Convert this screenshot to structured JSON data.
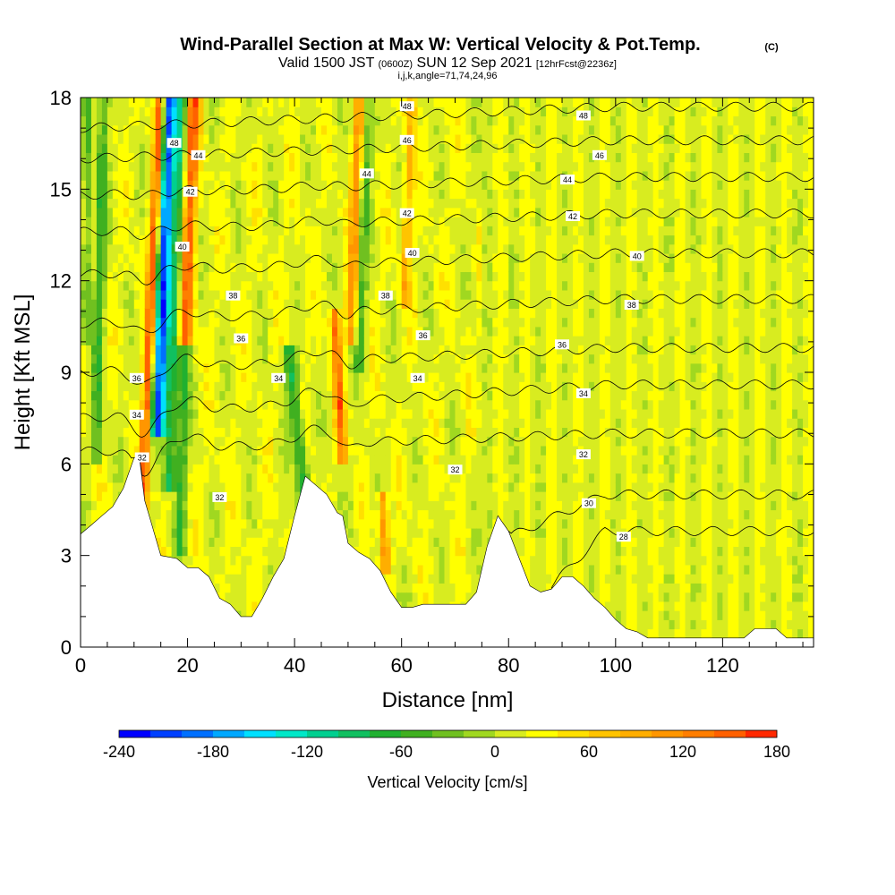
{
  "chart_data": {
    "type": "heatmap",
    "title": "Wind-Parallel Section at Max W: Vertical Velocity & Pot.Temp.",
    "title_mark": "(C)",
    "subtitle_main": "Valid 1500 JST",
    "subtitle_z": "(0600Z)",
    "subtitle_date": "SUN 12 Sep 2021",
    "subtitle_fcst": "[12hrFcst@2236z]",
    "subtitle_indices": "i,j,k,angle=71,74,24,96",
    "xlabel": "Distance [nm]",
    "ylabel": "Height [Kft MSL]",
    "xlim": [
      0,
      137
    ],
    "ylim": [
      0,
      18
    ],
    "x_ticks": [
      "0",
      "20",
      "40",
      "60",
      "80",
      "100",
      "120"
    ],
    "y_ticks": [
      "0",
      "3",
      "6",
      "9",
      "12",
      "15",
      "18"
    ],
    "colorbar": {
      "label": "Vertical Velocity [cm/s]",
      "min": -240,
      "max": 180,
      "step": 20,
      "tick_labels": [
        "-240",
        "-180",
        "-120",
        "-60",
        "0",
        "60",
        "120",
        "180"
      ],
      "colors": [
        "#0000ff",
        "#0040ff",
        "#0070ff",
        "#00a8ff",
        "#00e0ff",
        "#00e8c8",
        "#00d090",
        "#10c060",
        "#20b030",
        "#40b020",
        "#70c020",
        "#a0d820",
        "#d8ec20",
        "#ffff00",
        "#ffe000",
        "#ffc400",
        "#ffae00",
        "#ff9600",
        "#ff7e00",
        "#ff6000",
        "#ff2800",
        "#e80000",
        "#c00030",
        "#a00060",
        "#800080"
      ]
    },
    "terrain_kft": [
      [
        0,
        3.7
      ],
      [
        2,
        4.0
      ],
      [
        4,
        4.3
      ],
      [
        6,
        4.6
      ],
      [
        8,
        5.2
      ],
      [
        10,
        6.2
      ],
      [
        11,
        6.2
      ],
      [
        12,
        4.8
      ],
      [
        13,
        4.2
      ],
      [
        15,
        3.0
      ],
      [
        18,
        2.9
      ],
      [
        20,
        2.6
      ],
      [
        22,
        2.6
      ],
      [
        24,
        2.3
      ],
      [
        26,
        1.6
      ],
      [
        28,
        1.4
      ],
      [
        30,
        1.0
      ],
      [
        32,
        1.0
      ],
      [
        34,
        1.6
      ],
      [
        36,
        2.3
      ],
      [
        38,
        2.9
      ],
      [
        40,
        4.3
      ],
      [
        42,
        5.6
      ],
      [
        44,
        5.3
      ],
      [
        46,
        5.0
      ],
      [
        48,
        4.4
      ],
      [
        49,
        4.3
      ],
      [
        50,
        3.4
      ],
      [
        52,
        3.1
      ],
      [
        54,
        2.9
      ],
      [
        56,
        2.5
      ],
      [
        58,
        1.8
      ],
      [
        60,
        1.3
      ],
      [
        62,
        1.3
      ],
      [
        64,
        1.4
      ],
      [
        66,
        1.4
      ],
      [
        68,
        1.4
      ],
      [
        70,
        1.4
      ],
      [
        72,
        1.4
      ],
      [
        74,
        1.8
      ],
      [
        76,
        3.3
      ],
      [
        78,
        4.3
      ],
      [
        80,
        3.8
      ],
      [
        82,
        2.9
      ],
      [
        84,
        2.0
      ],
      [
        86,
        1.8
      ],
      [
        88,
        1.9
      ],
      [
        90,
        2.3
      ],
      [
        92,
        2.3
      ],
      [
        94,
        2.0
      ],
      [
        96,
        1.6
      ],
      [
        98,
        1.3
      ],
      [
        100,
        0.9
      ],
      [
        102,
        0.6
      ],
      [
        104,
        0.5
      ],
      [
        106,
        0.3
      ],
      [
        108,
        0.3
      ],
      [
        112,
        0.3
      ],
      [
        116,
        0.3
      ],
      [
        120,
        0.3
      ],
      [
        124,
        0.3
      ],
      [
        126,
        0.6
      ],
      [
        128,
        0.6
      ],
      [
        130,
        0.6
      ],
      [
        132,
        0.3
      ],
      [
        134,
        0.3
      ],
      [
        137,
        0.3
      ]
    ],
    "w_features": [
      {
        "x": 11.5,
        "z0": 4.5,
        "z1": 18,
        "lean": 0.25,
        "width": 0.9,
        "w": 140
      },
      {
        "x": 14.5,
        "z0": 7,
        "z1": 18,
        "lean": 0.2,
        "width": 1.3,
        "w": -220
      },
      {
        "x": 16.5,
        "z0": 5,
        "z1": 18,
        "lean": 0.2,
        "width": 1.2,
        "w": -100
      },
      {
        "x": 19.5,
        "z0": 10,
        "z1": 18,
        "lean": 0.2,
        "width": 1.3,
        "w": 130
      },
      {
        "x": 18.5,
        "z0": 3,
        "z1": 10,
        "lean": 0.15,
        "width": 1.0,
        "w": -70
      },
      {
        "x": 3,
        "z0": 6,
        "z1": 18,
        "lean": 0.1,
        "width": 1.0,
        "w": -70
      },
      {
        "x": 1,
        "z0": 10,
        "z1": 18,
        "lean": 0.05,
        "width": 0.8,
        "w": -60
      },
      {
        "x": 43,
        "z0": 3,
        "z1": 10,
        "lean": -0.6,
        "width": 1.2,
        "w": -90
      },
      {
        "x": 49,
        "z0": 6,
        "z1": 11,
        "lean": -0.3,
        "width": 0.9,
        "w": 120
      },
      {
        "x": 50.5,
        "z0": 10,
        "z1": 18,
        "lean": 0.2,
        "width": 1.0,
        "w": 90
      },
      {
        "x": 52,
        "z0": 9,
        "z1": 18,
        "lean": 0.2,
        "width": 1.0,
        "w": -60
      },
      {
        "x": 57,
        "z0": 2.5,
        "z1": 5,
        "lean": -0.2,
        "width": 0.9,
        "w": 100
      },
      {
        "x": 60.5,
        "z0": 11,
        "z1": 18,
        "lean": 0.2,
        "width": 0.9,
        "w": 70
      }
    ],
    "theta_contours": [
      {
        "label": "28",
        "x_start": 88,
        "z_start": 2.0,
        "z_end": 3.8,
        "curve_end": 98
      },
      {
        "label": "30",
        "x_start": 80,
        "z_start": 3.6,
        "z_end": 5.0,
        "curve_end": 98
      },
      {
        "label": "32",
        "x_start": 0,
        "z_start": 6.4,
        "z_end": 7.0,
        "curve_end": 100
      },
      {
        "label": "34",
        "x_start": 0,
        "z_start": 7.5,
        "z_end": 8.6,
        "curve_end": 100
      },
      {
        "label": "36",
        "x_start": 0,
        "z_start": 9.0,
        "z_end": 9.8,
        "curve_end": 100
      },
      {
        "label": "38",
        "x_start": 0,
        "z_start": 10.6,
        "z_end": 11.4,
        "curve_end": 100
      },
      {
        "label": "40",
        "x_start": 0,
        "z_start": 12.2,
        "z_end": 12.9,
        "curve_end": 100
      },
      {
        "label": "42",
        "x_start": 0,
        "z_start": 13.6,
        "z_end": 14.2,
        "curve_end": 100
      },
      {
        "label": "44",
        "x_start": 0,
        "z_start": 14.8,
        "z_end": 15.4,
        "curve_end": 100
      },
      {
        "label": "46",
        "x_start": 0,
        "z_start": 16.0,
        "z_end": 16.6,
        "curve_end": 100
      },
      {
        "label": "48",
        "x_start": 0,
        "z_start": 17.0,
        "z_end": 17.7,
        "curve_end": 100
      }
    ],
    "contour_labels": [
      {
        "text": "48",
        "x": 61,
        "z": 17.7
      },
      {
        "text": "48",
        "x": 94,
        "z": 17.4
      },
      {
        "text": "48",
        "x": 17.5,
        "z": 16.5
      },
      {
        "text": "46",
        "x": 61,
        "z": 16.6
      },
      {
        "text": "46",
        "x": 97,
        "z": 16.1
      },
      {
        "text": "44",
        "x": 22,
        "z": 16.1
      },
      {
        "text": "44",
        "x": 53.5,
        "z": 15.5
      },
      {
        "text": "44",
        "x": 91,
        "z": 15.3
      },
      {
        "text": "42",
        "x": 20.5,
        "z": 14.9
      },
      {
        "text": "42",
        "x": 61,
        "z": 14.2
      },
      {
        "text": "42",
        "x": 92,
        "z": 14.1
      },
      {
        "text": "40",
        "x": 19,
        "z": 13.1
      },
      {
        "text": "40",
        "x": 62,
        "z": 12.9
      },
      {
        "text": "40",
        "x": 104,
        "z": 12.8
      },
      {
        "text": "38",
        "x": 28.5,
        "z": 11.5
      },
      {
        "text": "38",
        "x": 57,
        "z": 11.5
      },
      {
        "text": "38",
        "x": 103,
        "z": 11.2
      },
      {
        "text": "36",
        "x": 30,
        "z": 10.1
      },
      {
        "text": "36",
        "x": 64,
        "z": 10.2
      },
      {
        "text": "36",
        "x": 90,
        "z": 9.9
      },
      {
        "text": "36",
        "x": 10.5,
        "z": 8.8
      },
      {
        "text": "34",
        "x": 37,
        "z": 8.8
      },
      {
        "text": "34",
        "x": 63,
        "z": 8.8
      },
      {
        "text": "34",
        "x": 94,
        "z": 8.3
      },
      {
        "text": "34",
        "x": 10.5,
        "z": 7.6
      },
      {
        "text": "32",
        "x": 11.5,
        "z": 6.2
      },
      {
        "text": "32",
        "x": 26,
        "z": 4.9
      },
      {
        "text": "32",
        "x": 70,
        "z": 5.8
      },
      {
        "text": "32",
        "x": 94,
        "z": 6.3
      },
      {
        "text": "30",
        "x": 95,
        "z": 4.7
      },
      {
        "text": "28",
        "x": 101.5,
        "z": 3.6
      }
    ]
  }
}
